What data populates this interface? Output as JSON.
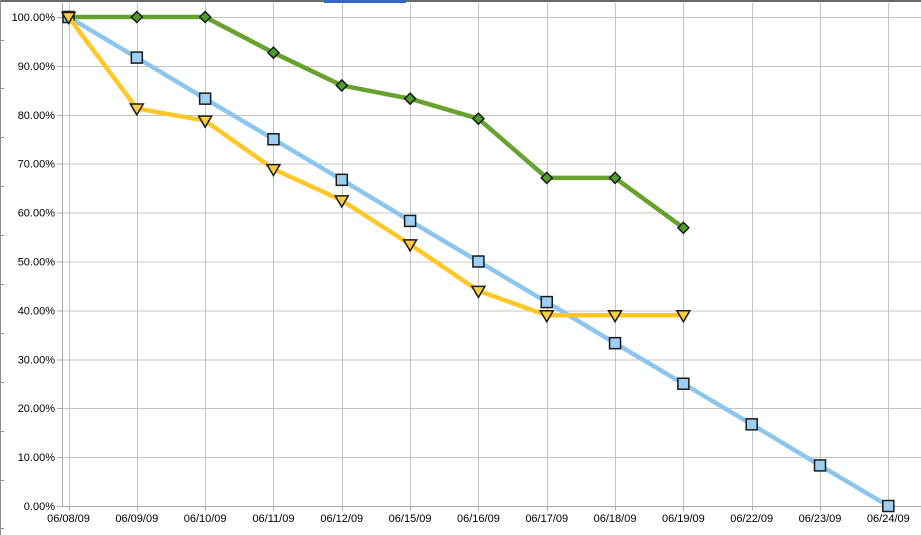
{
  "window": {
    "top_edge_color": "#6a6a6a",
    "top_edge_accent_color": "#3566c8"
  },
  "chart_data": {
    "type": "line",
    "title": "",
    "xlabel": "",
    "ylabel": "",
    "legend": "none",
    "grid": true,
    "background": "#ffffff",
    "gridline_color": "#c4c4c4",
    "axis_color": "#a9a9a9",
    "border_color": "#8c8c8c",
    "ylim": [
      0,
      100
    ],
    "yticks": [
      "100.00%",
      "90.00%",
      "80.00%",
      "70.00%",
      "60.00%",
      "50.00%",
      "40.00%",
      "30.00%",
      "20.00%",
      "10.00%",
      "0.00%"
    ],
    "ytick_values": [
      100,
      90,
      80,
      70,
      60,
      50,
      40,
      30,
      20,
      10,
      0
    ],
    "categories": [
      "06/08/09",
      "06/09/09",
      "06/10/09",
      "06/11/09",
      "06/12/09",
      "06/15/09",
      "06/16/09",
      "06/17/09",
      "06/18/09",
      "06/19/09",
      "06/22/09",
      "06/23/09",
      "06/24/09"
    ],
    "series": [
      {
        "name": "green-diamond-line",
        "marker": "diamond",
        "color": "#66a22d",
        "marker_fill": "#4e9d28",
        "values": [
          100,
          100,
          100,
          92.7,
          86,
          83.3,
          79.2,
          67.1,
          67.1,
          56.9,
          null,
          null,
          null
        ]
      },
      {
        "name": "light-blue-square-line",
        "marker": "square",
        "color": "#8cc6ee",
        "marker_fill": "#9ccff3",
        "values": [
          100,
          91.7,
          83.3,
          75,
          66.7,
          58.3,
          50,
          41.7,
          33.3,
          25,
          16.7,
          8.3,
          0
        ]
      },
      {
        "name": "yellow-triangle-line",
        "marker": "triangle-down",
        "color": "#ffc828",
        "marker_fill": "#ffce3c",
        "values": [
          100,
          81.3,
          78.8,
          68.9,
          62.5,
          53.5,
          44,
          39,
          39,
          39,
          null,
          null,
          null
        ]
      }
    ]
  }
}
